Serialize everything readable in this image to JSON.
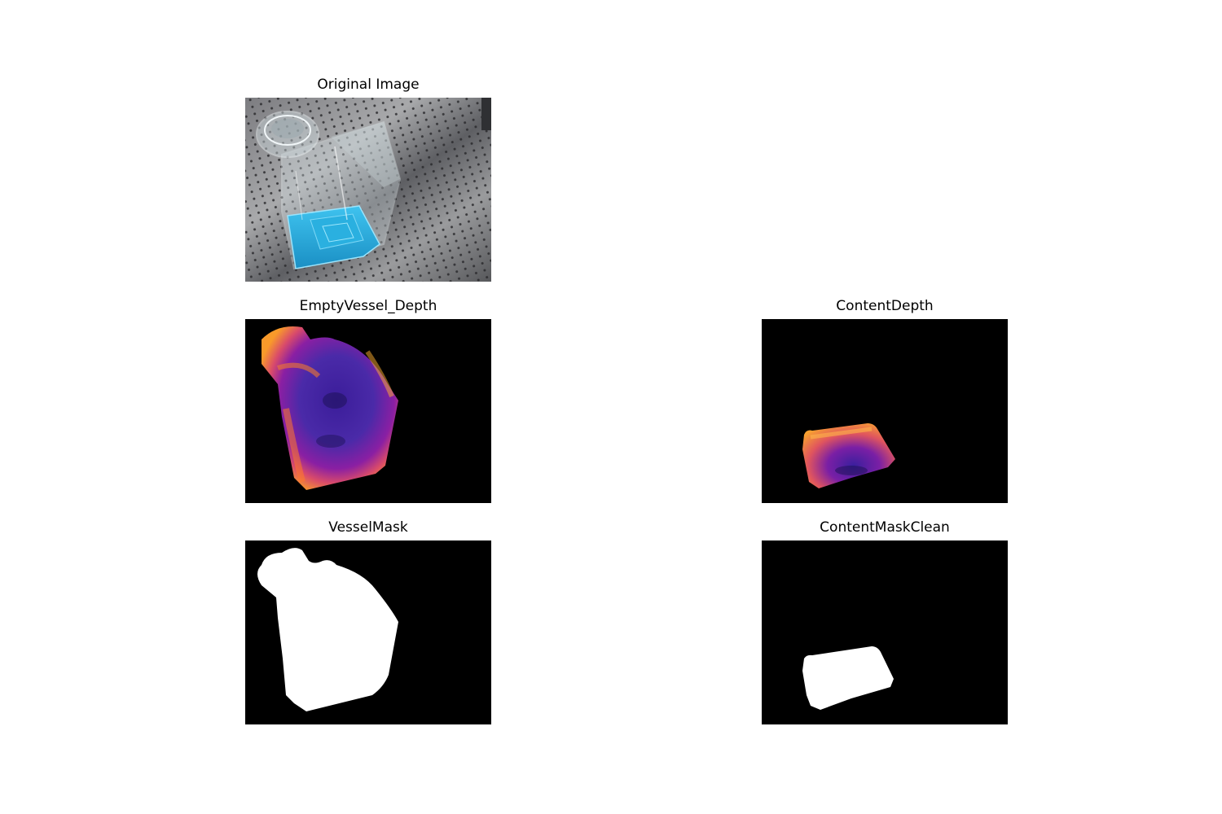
{
  "figure": {
    "panels": [
      {
        "id": "original",
        "title": "Original Image",
        "image": "photo of a clear glass bottle with blue liquid on a perforated metal table"
      },
      {
        "id": "empty_vessel_depth",
        "title": "EmptyVessel_Depth",
        "image": "false-color depth map of empty vessel region",
        "colormap": "plasma"
      },
      {
        "id": "content_depth",
        "title": "ContentDepth",
        "image": "false-color depth map of liquid content region",
        "colormap": "plasma"
      },
      {
        "id": "vessel_mask",
        "title": "VesselMask",
        "image": "binary mask of vessel (white on black)"
      },
      {
        "id": "content_mask_clean",
        "title": "ContentMaskClean",
        "image": "binary mask of content (white on black)"
      }
    ]
  }
}
